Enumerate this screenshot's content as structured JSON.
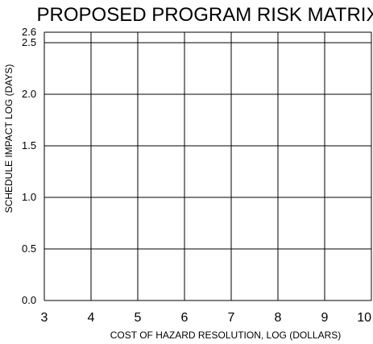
{
  "chart_data": {
    "type": "table",
    "title": "PROPOSED PROGRAM RISK MATRIX",
    "xlabel": "COST OF HAZARD RESOLUTION, LOG (DOLLARS)",
    "ylabel": "SCHEDULE IMPACT LOG (DAYS)",
    "xlim": [
      3,
      10
    ],
    "ylim": [
      0,
      2.6
    ],
    "x_ticks": [
      {
        "value": 3,
        "label": "3"
      },
      {
        "value": 4,
        "label": "4"
      },
      {
        "value": 5,
        "label": "5"
      },
      {
        "value": 6,
        "label": "6"
      },
      {
        "value": 7,
        "label": "7"
      },
      {
        "value": 8,
        "label": "8"
      },
      {
        "value": 9,
        "label": "9"
      },
      {
        "value": 10,
        "label": "10"
      }
    ],
    "y_ticks": [
      {
        "value": 0,
        "label": "0.0"
      },
      {
        "value": 0.5,
        "label": "0.5"
      },
      {
        "value": 1.0,
        "label": "1.0"
      },
      {
        "value": 1.5,
        "label": "1.5"
      },
      {
        "value": 2.0,
        "label": "2.0"
      },
      {
        "value": 2.5,
        "label": "2.5"
      },
      {
        "value": 2.6,
        "label": "2.6"
      }
    ],
    "grid": true,
    "gridline_color": "#000000"
  }
}
